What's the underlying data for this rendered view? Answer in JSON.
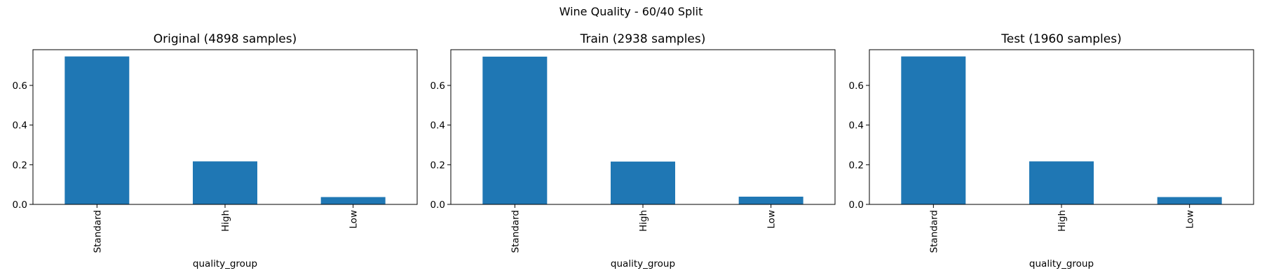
{
  "title": "Wine Quality - 60/40 Split",
  "colors": {
    "bar": "#1f77b4",
    "axis": "#000000",
    "background": "#ffffff"
  },
  "chart_data": [
    {
      "type": "bar",
      "title": "Original (4898 samples)",
      "xlabel": "quality_group",
      "ylabel": "",
      "categories": [
        "Standard",
        "High",
        "Low"
      ],
      "values": [
        0.746,
        0.217,
        0.037
      ],
      "ylim": [
        0,
        0.78
      ],
      "yticks": [
        "0.0",
        "0.2",
        "0.4",
        "0.6"
      ],
      "grid": false,
      "legend": false
    },
    {
      "type": "bar",
      "title": "Train (2938 samples)",
      "xlabel": "quality_group",
      "ylabel": "",
      "categories": [
        "Standard",
        "High",
        "Low"
      ],
      "values": [
        0.745,
        0.216,
        0.039
      ],
      "ylim": [
        0,
        0.78
      ],
      "yticks": [
        "0.0",
        "0.2",
        "0.4",
        "0.6"
      ],
      "grid": false,
      "legend": false
    },
    {
      "type": "bar",
      "title": "Test (1960 samples)",
      "xlabel": "quality_group",
      "ylabel": "",
      "categories": [
        "Standard",
        "High",
        "Low"
      ],
      "values": [
        0.746,
        0.217,
        0.037
      ],
      "ylim": [
        0,
        0.78
      ],
      "yticks": [
        "0.0",
        "0.2",
        "0.4",
        "0.6"
      ],
      "grid": false,
      "legend": false
    }
  ]
}
